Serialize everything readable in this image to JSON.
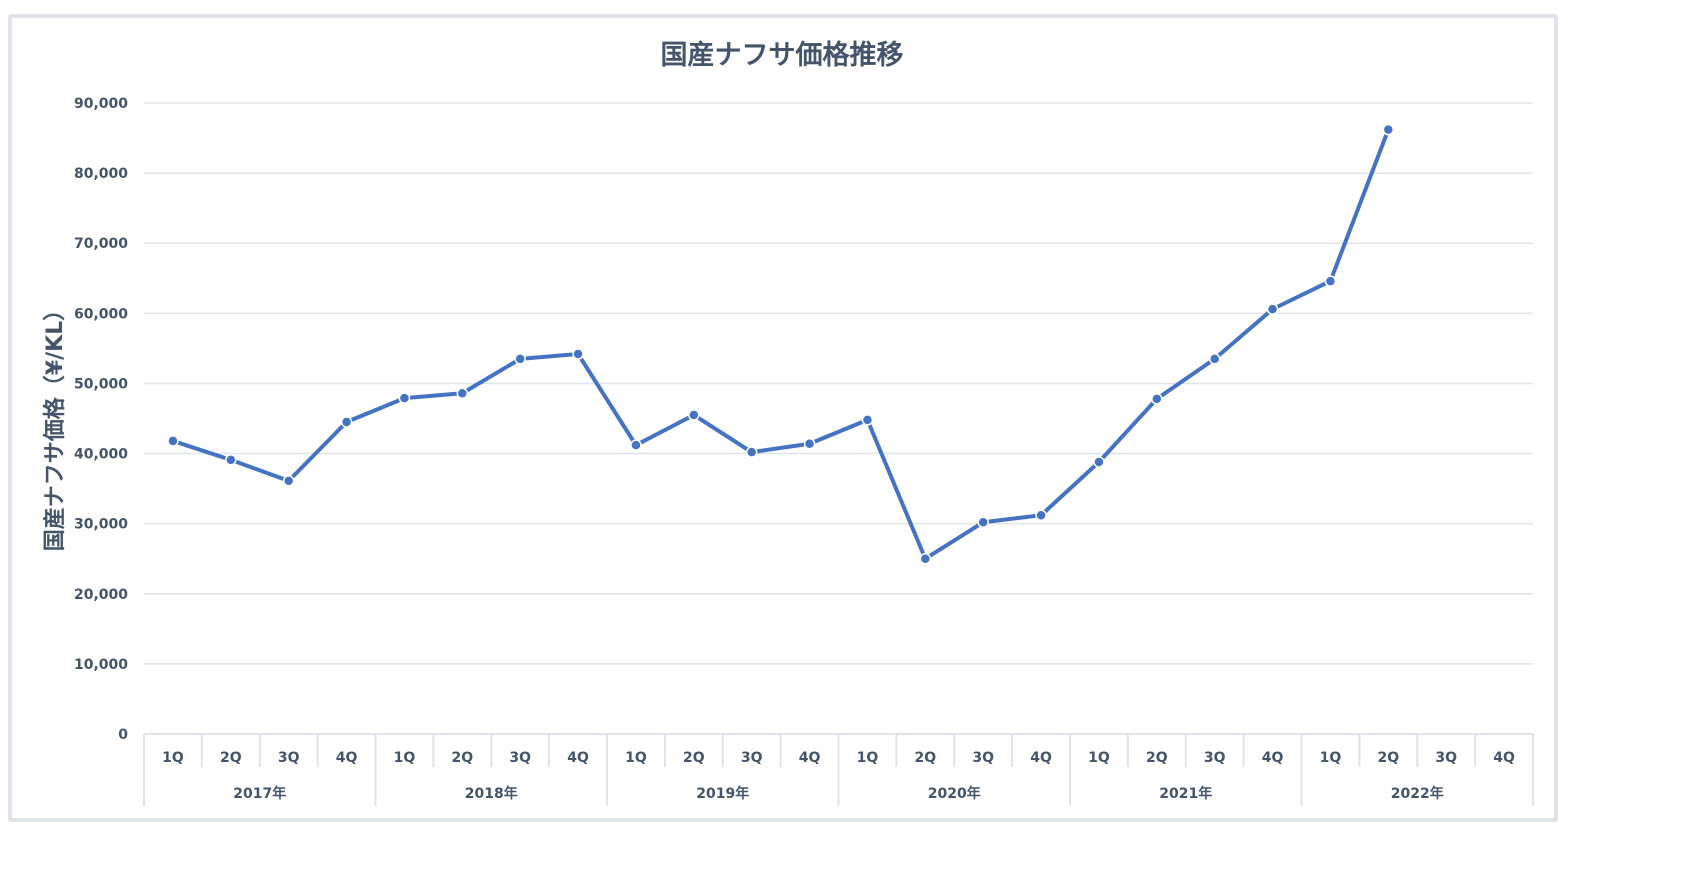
{
  "chart_data": {
    "type": "line",
    "title": "国産ナフサ価格推移",
    "xlabel": "",
    "ylabel": "国産ナフサ価格（¥/KL）",
    "ylim": [
      0,
      90000
    ],
    "yticks": [
      0,
      10000,
      20000,
      30000,
      40000,
      50000,
      60000,
      70000,
      80000,
      90000
    ],
    "ytick_labels": [
      "0",
      "10,000",
      "20,000",
      "30,000",
      "40,000",
      "50,000",
      "60,000",
      "70,000",
      "80,000",
      "90,000"
    ],
    "grid": true,
    "years": [
      "2017年",
      "2018年",
      "2019年",
      "2020年",
      "2021年",
      "2022年"
    ],
    "quarters": [
      "1Q",
      "2Q",
      "3Q",
      "4Q"
    ],
    "series": [
      {
        "name": "国産ナフサ価格",
        "color": "#4472c4",
        "values": [
          41800,
          39100,
          36100,
          44500,
          47900,
          48600,
          53500,
          54200,
          41200,
          45500,
          40200,
          41400,
          44800,
          25000,
          30200,
          31200,
          38800,
          47800,
          53500,
          60600,
          64600,
          86200,
          null,
          null
        ]
      }
    ]
  }
}
